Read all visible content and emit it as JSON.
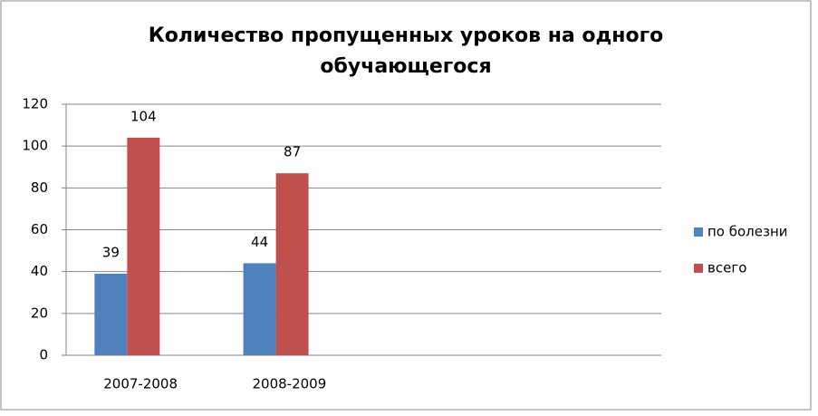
{
  "chart_data": {
    "type": "bar",
    "title": [
      "Количество пропущенных  уроков на одного",
      "обучающегося"
    ],
    "categories": [
      "2007-2008",
      "2008-2009",
      null,
      null
    ],
    "series": [
      {
        "name": "по болезни",
        "color": "#4f81bd",
        "values": [
          39,
          44,
          null,
          null
        ]
      },
      {
        "name": "всего",
        "color": "#c0504d",
        "values": [
          104,
          87,
          null,
          null
        ]
      }
    ],
    "ylim": [
      0,
      120
    ],
    "yticks": [
      0,
      20,
      40,
      60,
      80,
      100,
      120
    ],
    "grid": true,
    "legend": "right"
  }
}
